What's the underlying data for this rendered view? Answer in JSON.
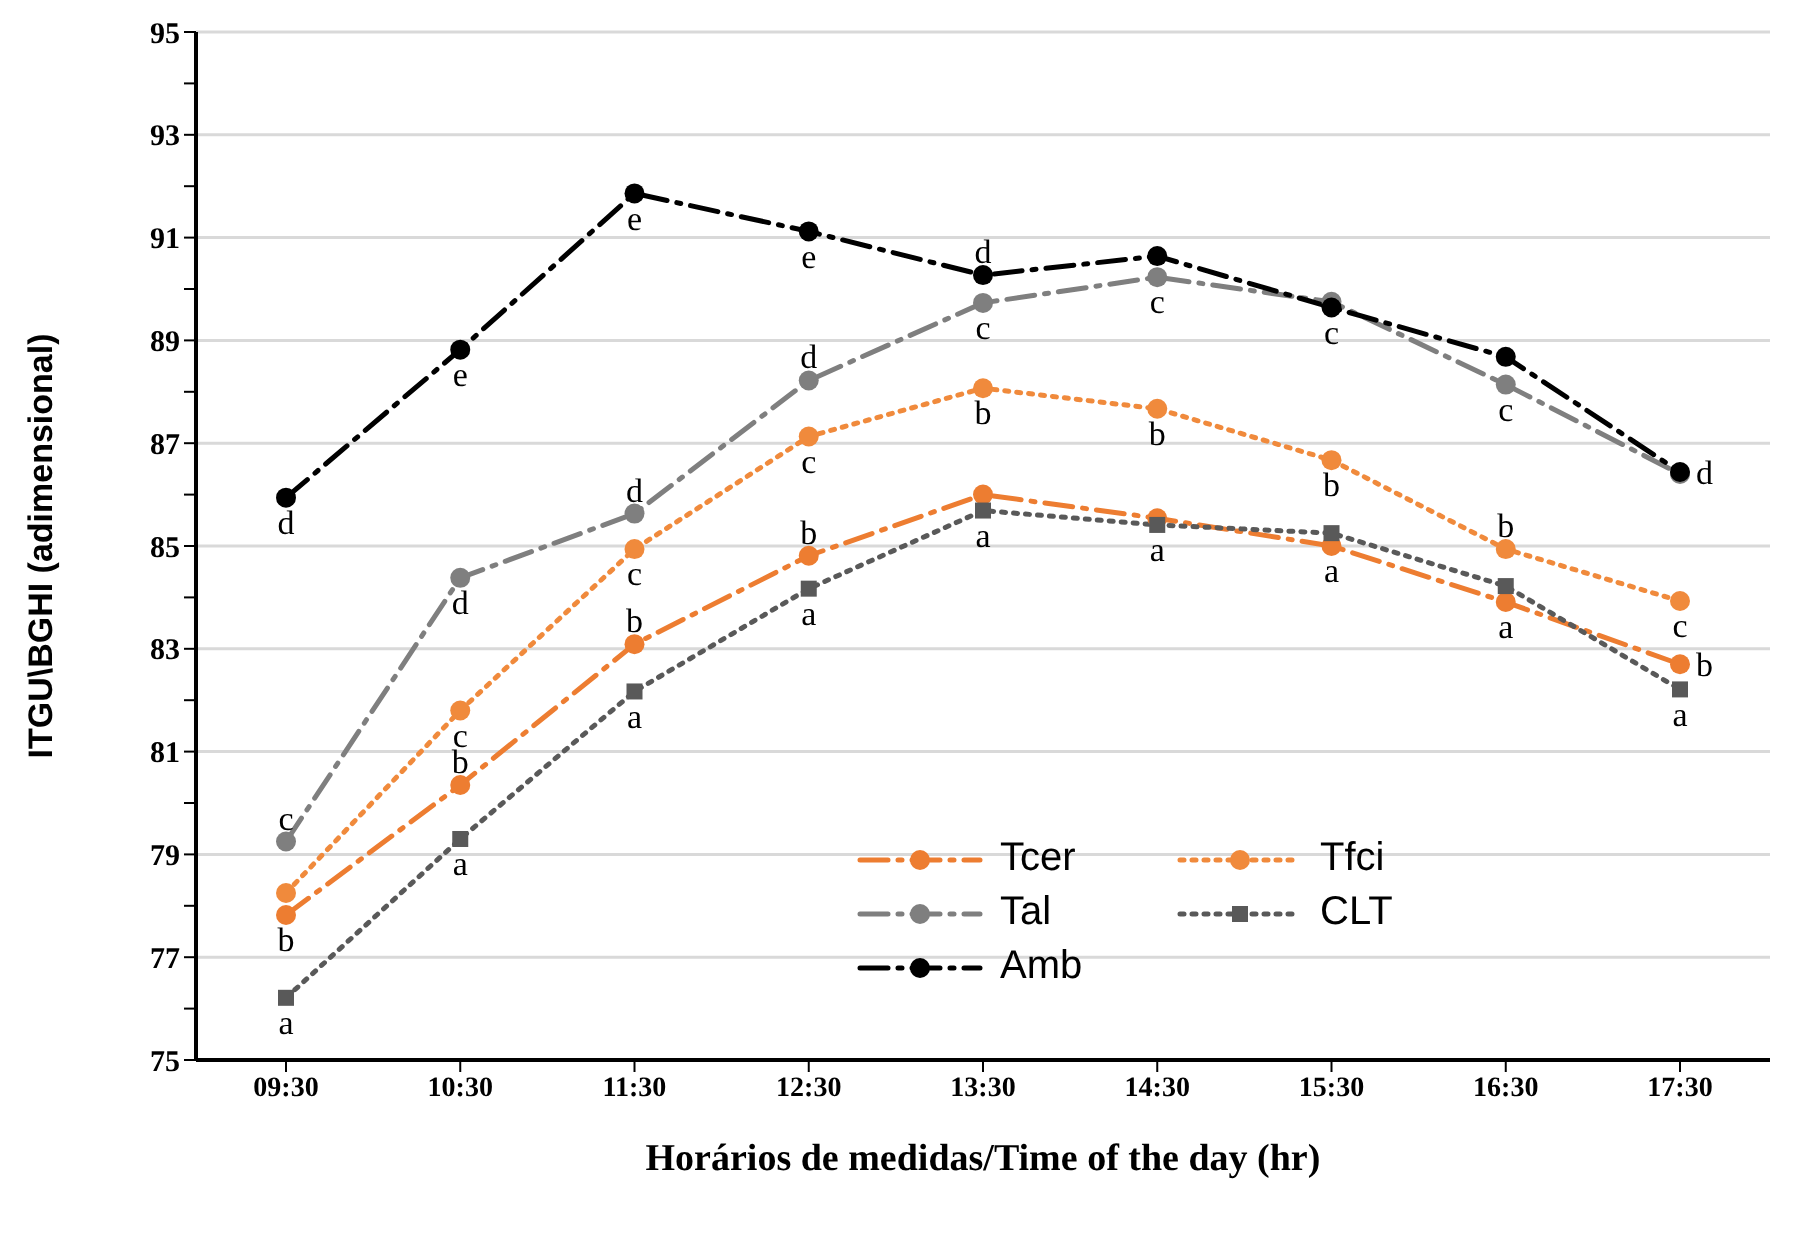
{
  "chart_data": {
    "type": "line",
    "xlabel": "Horários de medidas/Time of the day (hr)",
    "ylabel": "ITGU\\BGHI (adimensional)",
    "categories": [
      "09:30",
      "10:30",
      "11:30",
      "12:30",
      "13:30",
      "14:30",
      "15:30",
      "16:30",
      "17:30"
    ],
    "series": [
      {
        "name": "Tcer",
        "color": "#ed7d31",
        "line_style": "dashed",
        "marker": "circle",
        "values": [
          77.82,
          80.35,
          83.09,
          84.81,
          86.0,
          85.54,
          85.0,
          83.91,
          82.7
        ]
      },
      {
        "name": "Tfci",
        "color": "#f08a3c",
        "line_style": "dotted",
        "marker": "circle",
        "values": [
          78.25,
          81.8,
          84.94,
          87.13,
          88.07,
          87.67,
          86.67,
          84.94,
          83.93
        ]
      },
      {
        "name": "Tal",
        "color": "#7f7f7f",
        "line_style": "dashed",
        "marker": "circle",
        "values": [
          79.25,
          84.38,
          85.63,
          88.22,
          89.73,
          90.23,
          89.75,
          88.14,
          86.4
        ]
      },
      {
        "name": "CLT",
        "color": "#595959",
        "line_style": "dotted",
        "marker": "square",
        "values": [
          76.21,
          79.3,
          82.17,
          84.17,
          85.69,
          85.41,
          85.25,
          84.22,
          82.21
        ]
      },
      {
        "name": "Amb",
        "color": "#000000",
        "line_style": "dashed",
        "marker": "circle",
        "values": [
          85.94,
          88.82,
          91.86,
          91.12,
          90.27,
          90.64,
          89.64,
          88.68,
          86.44
        ]
      }
    ],
    "ylim": [
      75,
      95
    ],
    "yticks": [
      75,
      {
        "value": 76,
        "label": null
      },
      77,
      {
        "value": 78,
        "label": null
      },
      79,
      {
        "value": 80,
        "label": null
      },
      81,
      {
        "value": 82,
        "label": null
      },
      83,
      {
        "value": 84,
        "label": null
      },
      85,
      {
        "value": 86,
        "label": null
      },
      87,
      {
        "value": 88,
        "label": null
      },
      89,
      {
        "value": 90,
        "label": null
      },
      91,
      {
        "value": 92,
        "label": null
      },
      93,
      {
        "value": 94,
        "label": null
      },
      95
    ],
    "grid": "y",
    "legend": "bottom",
    "annotations": [
      {
        "text": "d",
        "x": "09:30",
        "y": 85.94
      },
      {
        "text": "c",
        "x": "09:30",
        "y": 79.25
      },
      {
        "text": "b",
        "x": "09:30",
        "y": 77.82
      },
      {
        "text": "a",
        "x": "09:30",
        "y": 76.21
      },
      {
        "text": "e",
        "x": "10:30",
        "y": 88.82
      },
      {
        "text": "d",
        "x": "10:30",
        "y": 84.38
      },
      {
        "text": "c",
        "x": "10:30",
        "y": 81.8
      },
      {
        "text": "b",
        "x": "10:30",
        "y": 80.35
      },
      {
        "text": "a",
        "x": "10:30",
        "y": 79.3
      },
      {
        "text": "e",
        "x": "11:30",
        "y": 91.86
      },
      {
        "text": "d",
        "x": "11:30",
        "y": 85.63
      },
      {
        "text": "c",
        "x": "11:30",
        "y": 84.94
      },
      {
        "text": "b",
        "x": "11:30",
        "y": 83.09
      },
      {
        "text": "a",
        "x": "11:30",
        "y": 82.17
      },
      {
        "text": "e",
        "x": "12:30",
        "y": 91.12
      },
      {
        "text": "d",
        "x": "12:30",
        "y": 88.22
      },
      {
        "text": "c",
        "x": "12:30",
        "y": 87.13
      },
      {
        "text": "b",
        "x": "12:30",
        "y": 84.81
      },
      {
        "text": "a",
        "x": "12:30",
        "y": 84.17
      },
      {
        "text": "d",
        "x": "13:30",
        "y": 90.27
      },
      {
        "text": "c",
        "x": "13:30",
        "y": 89.73
      },
      {
        "text": "b",
        "x": "13:30",
        "y": 88.07
      },
      {
        "text": "a",
        "x": "13:30",
        "y": 85.69
      },
      {
        "text": "c",
        "x": "14:30",
        "y": 90.23
      },
      {
        "text": "b",
        "x": "14:30",
        "y": 87.67
      },
      {
        "text": "a",
        "x": "14:30",
        "y": 85.41
      },
      {
        "text": "c",
        "x": "15:30",
        "y": 89.64
      },
      {
        "text": "b",
        "x": "15:30",
        "y": 86.67
      },
      {
        "text": "a",
        "x": "15:30",
        "y": 85.0
      },
      {
        "text": "c",
        "x": "16:30",
        "y": 88.14
      },
      {
        "text": "b",
        "x": "16:30",
        "y": 84.94
      },
      {
        "text": "a",
        "x": "16:30",
        "y": 83.91
      },
      {
        "text": "d",
        "x": "17:30",
        "y": 86.44
      },
      {
        "text": "c",
        "x": "17:30",
        "y": 83.93
      },
      {
        "text": "b",
        "x": "17:30",
        "y": 82.7
      },
      {
        "text": "a",
        "x": "17:30",
        "y": 82.21
      }
    ]
  }
}
